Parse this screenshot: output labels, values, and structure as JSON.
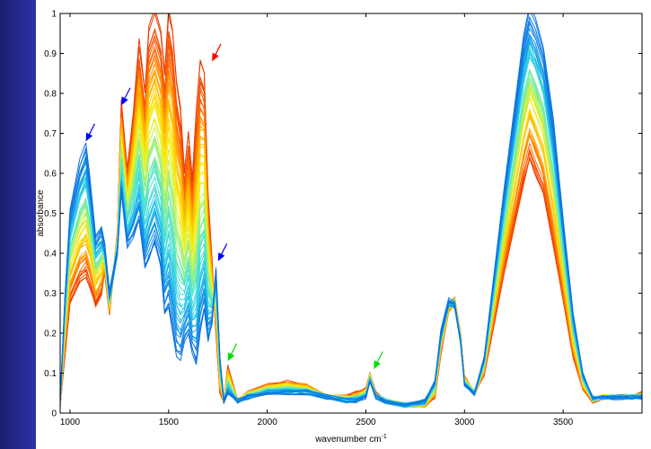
{
  "chart_data": {
    "type": "line",
    "title": "",
    "xlabel": "wavenumber cm",
    "xlabel_superscript": "-1",
    "ylabel": "absorbance",
    "xlim": [
      950,
      3900
    ],
    "ylim": [
      0,
      1
    ],
    "x_ticks": [
      1000,
      1500,
      2000,
      2500,
      3000,
      3500
    ],
    "y_ticks": [
      0,
      0.1,
      0.2,
      0.3,
      0.4,
      0.5,
      0.6,
      0.7,
      0.8,
      0.9,
      1
    ],
    "grid": false,
    "legend": "none",
    "series_count": 60,
    "colormap": [
      "#e63900",
      "#ff5a00",
      "#ff9a00",
      "#ffd200",
      "#f2f21a",
      "#9df07a",
      "#5ee8c0",
      "#2fd0ea",
      "#169ae8",
      "#0b6fe0"
    ],
    "profile_first": {
      "x": [
        950,
        975,
        1000,
        1050,
        1080,
        1100,
        1130,
        1160,
        1175,
        1200,
        1240,
        1260,
        1290,
        1320,
        1350,
        1380,
        1400,
        1430,
        1460,
        1480,
        1500,
        1520,
        1540,
        1560,
        1580,
        1600,
        1620,
        1640,
        1660,
        1680,
        1700,
        1720,
        1740,
        1760,
        1780,
        1800,
        1850,
        1900,
        2000,
        2100,
        2200,
        2300,
        2400,
        2450,
        2500,
        2520,
        2550,
        2600,
        2700,
        2800,
        2850,
        2880,
        2920,
        2950,
        2980,
        3000,
        3050,
        3100,
        3200,
        3300,
        3330,
        3360,
        3400,
        3450,
        3500,
        3550,
        3600,
        3650,
        3700,
        3750,
        3800,
        3850,
        3900
      ],
      "y": [
        0.02,
        0.15,
        0.28,
        0.33,
        0.34,
        0.32,
        0.27,
        0.3,
        0.36,
        0.25,
        0.45,
        0.77,
        0.6,
        0.74,
        0.92,
        0.8,
        0.96,
        1.0,
        0.95,
        0.85,
        1.0,
        0.95,
        0.82,
        0.76,
        0.6,
        0.7,
        0.58,
        0.75,
        0.88,
        0.85,
        0.55,
        0.38,
        0.2,
        0.05,
        0.03,
        0.12,
        0.03,
        0.05,
        0.07,
        0.08,
        0.07,
        0.04,
        0.04,
        0.05,
        0.06,
        0.1,
        0.05,
        0.03,
        0.02,
        0.02,
        0.04,
        0.15,
        0.26,
        0.28,
        0.2,
        0.09,
        0.05,
        0.1,
        0.35,
        0.58,
        0.64,
        0.6,
        0.55,
        0.42,
        0.28,
        0.14,
        0.06,
        0.03,
        0.04,
        0.04,
        0.04,
        0.04,
        0.05
      ]
    },
    "profile_last": {
      "x": [
        950,
        975,
        1000,
        1050,
        1080,
        1100,
        1130,
        1160,
        1175,
        1200,
        1240,
        1260,
        1290,
        1320,
        1350,
        1380,
        1400,
        1430,
        1460,
        1480,
        1500,
        1520,
        1540,
        1560,
        1580,
        1600,
        1620,
        1640,
        1660,
        1680,
        1700,
        1720,
        1740,
        1760,
        1780,
        1800,
        1850,
        1900,
        2000,
        2100,
        2200,
        2300,
        2400,
        2450,
        2500,
        2520,
        2550,
        2600,
        2700,
        2800,
        2850,
        2880,
        2920,
        2950,
        2980,
        3000,
        3050,
        3100,
        3200,
        3300,
        3330,
        3360,
        3400,
        3450,
        3500,
        3550,
        3600,
        3650,
        3700,
        3750,
        3800,
        3850,
        3900
      ],
      "y": [
        0.03,
        0.3,
        0.5,
        0.62,
        0.66,
        0.58,
        0.44,
        0.46,
        0.42,
        0.3,
        0.4,
        0.55,
        0.42,
        0.44,
        0.48,
        0.36,
        0.38,
        0.42,
        0.36,
        0.24,
        0.26,
        0.2,
        0.14,
        0.13,
        0.18,
        0.2,
        0.15,
        0.12,
        0.2,
        0.25,
        0.18,
        0.22,
        0.36,
        0.14,
        0.03,
        0.05,
        0.03,
        0.04,
        0.05,
        0.05,
        0.05,
        0.04,
        0.03,
        0.03,
        0.04,
        0.08,
        0.04,
        0.03,
        0.02,
        0.03,
        0.08,
        0.2,
        0.28,
        0.27,
        0.18,
        0.07,
        0.05,
        0.14,
        0.55,
        0.93,
        1.0,
        0.97,
        0.9,
        0.72,
        0.48,
        0.25,
        0.1,
        0.04,
        0.04,
        0.04,
        0.04,
        0.04,
        0.04
      ]
    },
    "arrows": [
      {
        "x": 1080,
        "y": 0.68,
        "color": "#0000ff"
      },
      {
        "x": 1260,
        "y": 0.77,
        "color": "#0000ff"
      },
      {
        "x": 1720,
        "y": 0.88,
        "color": "#ff0000"
      },
      {
        "x": 1750,
        "y": 0.38,
        "color": "#0000ff"
      },
      {
        "x": 1800,
        "y": 0.13,
        "color": "#00dd00"
      },
      {
        "x": 2540,
        "y": 0.11,
        "color": "#00dd00"
      }
    ]
  }
}
